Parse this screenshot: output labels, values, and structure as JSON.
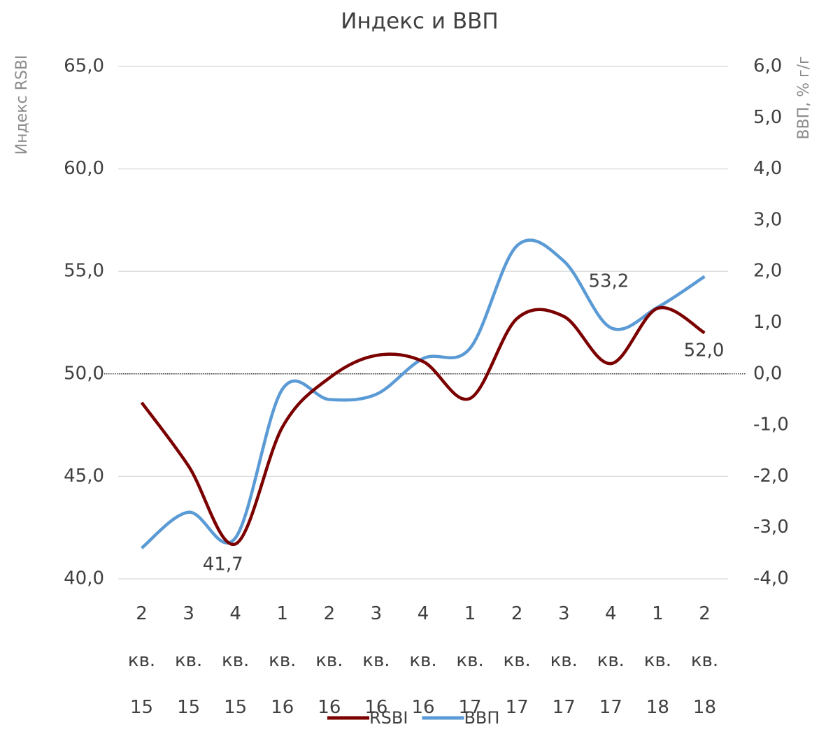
{
  "chart_data": {
    "type": "line",
    "title": "Индекс и ВВП",
    "y_label": "Индекс RSBI",
    "y2_label": "ВВП, % г/г",
    "categories": [
      "2 кв. 15",
      "3 кв. 15",
      "4 кв. 15",
      "1 кв. 16",
      "2 кв. 16",
      "3 кв. 16",
      "4 кв. 16",
      "1 кв. 17",
      "2 кв. 17",
      "3 кв. 17",
      "4 кв. 17",
      "1 кв. 18",
      "2 кв. 18"
    ],
    "series": [
      {
        "name": "RSBI",
        "color": "#7b0000",
        "values": [
          48.6,
          45.5,
          41.7,
          47.4,
          49.8,
          50.9,
          50.6,
          48.8,
          52.7,
          52.8,
          50.5,
          53.2,
          52.0
        ],
        "value_labels": [
          null,
          null,
          "41,7",
          null,
          null,
          null,
          null,
          null,
          null,
          null,
          null,
          "53,2",
          "52,0"
        ]
      },
      {
        "name": "ВВП",
        "color": "#5b9bd5",
        "axis": "y2",
        "values": [
          -3.4,
          -2.7,
          -3.2,
          -0.3,
          -0.5,
          -0.4,
          0.3,
          0.5,
          2.5,
          2.2,
          0.9,
          1.3,
          1.9
        ]
      }
    ],
    "ylim": [
      40,
      65
    ],
    "yticks": [
      {
        "value": 40,
        "label": "40,0"
      },
      {
        "value": 45,
        "label": "45,0"
      },
      {
        "value": 50,
        "label": "50,0"
      },
      {
        "value": 55,
        "label": "55,0"
      },
      {
        "value": 60,
        "label": "60,0"
      },
      {
        "value": 65,
        "label": "65,0"
      }
    ],
    "y2lim": [
      -4,
      6
    ],
    "y2ticks": [
      {
        "value": -4,
        "label": "-4,0"
      },
      {
        "value": -3,
        "label": "-3,0"
      },
      {
        "value": -2,
        "label": "-2,0"
      },
      {
        "value": -1,
        "label": "-1,0"
      },
      {
        "value": 0,
        "label": "0,0"
      },
      {
        "value": 1,
        "label": "1,0"
      },
      {
        "value": 2,
        "label": "2,0"
      },
      {
        "value": 3,
        "label": "3,0"
      },
      {
        "value": 4,
        "label": "4,0"
      },
      {
        "value": 5,
        "label": "5,0"
      },
      {
        "value": 6,
        "label": "6,0"
      }
    ],
    "grid": true,
    "smooth": true,
    "legend": "bottom"
  }
}
